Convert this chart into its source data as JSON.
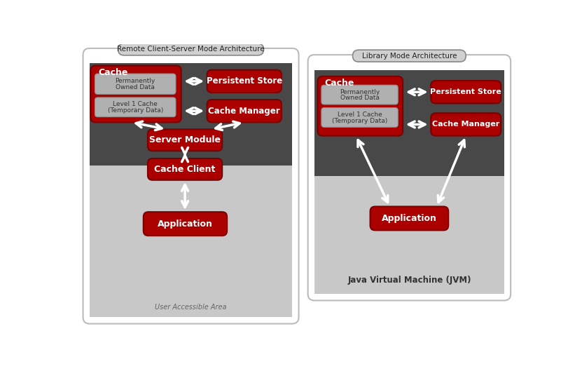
{
  "bg_color": "#ffffff",
  "dark_gray": "#484848",
  "light_gray": "#c8c8c8",
  "red_dark": "#7a0000",
  "red_main": "#aa0000",
  "inner_gray_face": "#b0b0b0",
  "inner_gray_edge": "#909090",
  "title_left": "Remote Client-Server Mode Architecture",
  "title_right": "Library Mode Architecture",
  "jvm_label": "Java Virtual Machine (JVM)",
  "user_area_label": "User Accessible Area",
  "panel_edge": "#bbbbbb",
  "title_pill_face": "#d0d0d0",
  "title_pill_edge": "#888888"
}
